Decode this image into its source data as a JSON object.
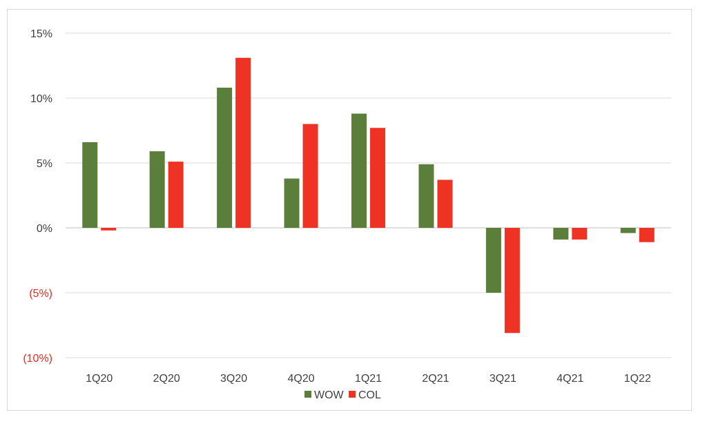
{
  "chart_data": {
    "type": "bar",
    "categories": [
      "1Q20",
      "2Q20",
      "3Q20",
      "4Q20",
      "1Q21",
      "2Q21",
      "3Q21",
      "4Q21",
      "1Q22"
    ],
    "series": [
      {
        "name": "WOW",
        "color": "#5b7f3a",
        "values": [
          6.6,
          5.9,
          10.8,
          3.8,
          8.8,
          4.9,
          -5.0,
          -0.9,
          -0.4
        ]
      },
      {
        "name": "COL",
        "color": "#ee3224",
        "values": [
          -0.2,
          5.1,
          13.1,
          8.0,
          7.7,
          3.7,
          -8.1,
          -0.9,
          -1.1
        ]
      }
    ],
    "ylim": [
      -10,
      15
    ],
    "yticks": [
      {
        "value": 15,
        "label": "15%"
      },
      {
        "value": 10,
        "label": "10%"
      },
      {
        "value": 5,
        "label": "5%"
      },
      {
        "value": 0,
        "label": "0%"
      },
      {
        "value": -5,
        "label": "(5%)"
      },
      {
        "value": -10,
        "label": "(10%)"
      }
    ],
    "title": "",
    "xlabel": "",
    "ylabel": "",
    "grid": true,
    "legend": "bottom-center"
  }
}
